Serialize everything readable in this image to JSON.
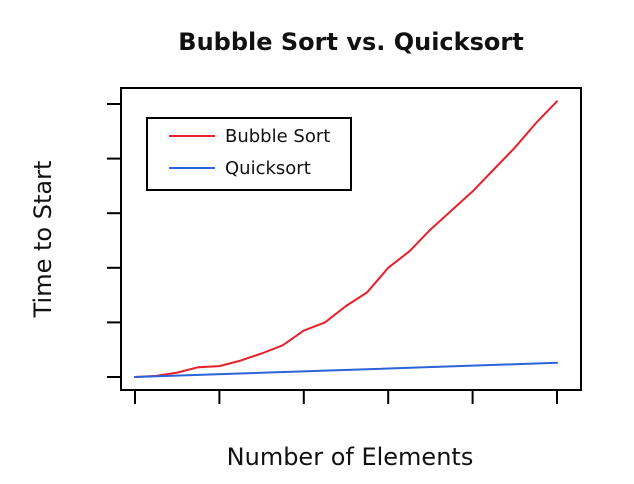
{
  "chart_data": {
    "type": "line",
    "title": "Bubble Sort vs. Quicksort",
    "xlabel": "Number of Elements",
    "ylabel": "Time to Start",
    "x_ticks_labeled": false,
    "y_ticks_labeled": false,
    "xlim": [
      0,
      5
    ],
    "ylim": [
      0,
      5
    ],
    "x_ticks": [
      0,
      1,
      2,
      3,
      4,
      5
    ],
    "y_ticks": [
      0,
      1,
      2,
      3,
      4,
      5
    ],
    "grid": false,
    "legend_position": "top-left",
    "series": [
      {
        "name": "Bubble Sort",
        "color": "#e8202a",
        "x": [
          0,
          0.25,
          0.5,
          0.75,
          1,
          1.25,
          1.5,
          1.75,
          2,
          2.25,
          2.5,
          2.75,
          3,
          3.25,
          3.5,
          3.75,
          4,
          4.25,
          4.5,
          4.75,
          5
        ],
        "y": [
          0,
          0.02,
          0.08,
          0.18,
          0.2,
          0.3,
          0.43,
          0.58,
          0.85,
          1.0,
          1.3,
          1.55,
          2.0,
          2.3,
          2.7,
          3.05,
          3.4,
          3.8,
          4.2,
          4.65,
          5.05
        ]
      },
      {
        "name": "Quicksort",
        "color": "#2b63d9",
        "x": [
          0,
          5
        ],
        "y": [
          0,
          0.26
        ]
      }
    ]
  }
}
